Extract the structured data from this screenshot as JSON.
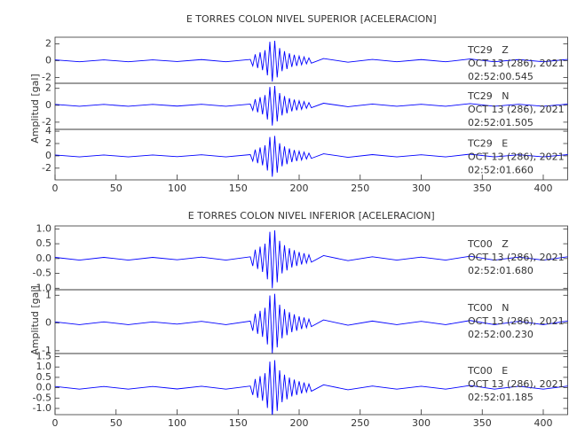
{
  "chart_data": [
    {
      "type": "line",
      "title": "E TORRES COLON NIVEL SUPERIOR [ACELERACION]",
      "ylabel": "Amplitud [gal]",
      "x": [
        0,
        20,
        40,
        60,
        80,
        100,
        120,
        140,
        160,
        162,
        164,
        166,
        168,
        170,
        172,
        174,
        176,
        178,
        180,
        182,
        184,
        186,
        188,
        190,
        192,
        194,
        196,
        198,
        200,
        202,
        204,
        206,
        208,
        210,
        220,
        240,
        260,
        280,
        300,
        320,
        340,
        360,
        380,
        400,
        420
      ],
      "xlim": [
        0,
        420
      ],
      "xticks": [
        0,
        50,
        100,
        150,
        200,
        250,
        300,
        350,
        400
      ],
      "panels": [
        {
          "station": "TC29   Z",
          "date": "OCT 13 (286), 2021",
          "time": "02:52:00.545",
          "ylim": [
            -2.7,
            2.8
          ],
          "yticks": [
            2,
            0,
            -2
          ],
          "series": [
            {
              "color": "#0000ff",
              "values": [
                0.1,
                -0.13,
                0.1,
                -0.13,
                0.1,
                -0.1,
                0.13,
                -0.13,
                0.15,
                -0.63,
                0.75,
                -0.88,
                1,
                -1.13,
                1.25,
                -1.75,
                2.25,
                -2.5,
                2.38,
                -2,
                1.5,
                -1.25,
                1.13,
                -1,
                0.88,
                -0.75,
                0.7,
                -0.63,
                0.55,
                -0.5,
                0.45,
                -0.38,
                0.33,
                -0.3,
                0.25,
                -0.18,
                0.15,
                -0.13,
                0.13,
                -0.13,
                0.2,
                -0.13,
                0.13,
                -0.13,
                0.15
              ]
            }
          ]
        },
        {
          "station": "TC29   N",
          "date": "OCT 13 (286), 2021",
          "time": "02:52:01.505",
          "ylim": [
            -2.85,
            2.6
          ],
          "yticks": [
            2,
            0,
            -2
          ],
          "series": [
            {
              "color": "#0000ff",
              "values": [
                0.1,
                -0.12,
                0.1,
                -0.12,
                0.1,
                -0.1,
                0.12,
                -0.12,
                0.14,
                -0.6,
                0.72,
                -0.84,
                0.96,
                -1.08,
                1.2,
                -1.68,
                2.16,
                -2.4,
                2.28,
                -1.92,
                1.44,
                -1.2,
                1.08,
                -0.96,
                0.84,
                -0.72,
                0.67,
                -0.6,
                0.53,
                -0.48,
                0.43,
                -0.36,
                0.31,
                -0.29,
                0.24,
                -0.17,
                0.14,
                -0.12,
                0.12,
                -0.12,
                0.19,
                -0.12,
                0.12,
                -0.12,
                0.14
              ]
            }
          ]
        },
        {
          "station": "TC29   E",
          "date": "OCT 13 (286), 2021",
          "time": "02:52:01.660",
          "ylim": [
            -3.9,
            4.3
          ],
          "yticks": [
            4,
            2,
            0,
            -2
          ],
          "series": [
            {
              "color": "#0000ff",
              "values": [
                0.14,
                -0.17,
                0.14,
                -0.17,
                0.14,
                -0.14,
                0.17,
                -0.17,
                0.2,
                -0.85,
                1.02,
                -1.19,
                1.36,
                -1.53,
                1.7,
                -2.38,
                3.06,
                -3.4,
                3.23,
                -2.72,
                2.04,
                -1.7,
                1.53,
                -1.36,
                1.19,
                -1.02,
                0.95,
                -0.85,
                0.75,
                -0.68,
                0.61,
                -0.51,
                0.44,
                -0.41,
                0.34,
                -0.24,
                0.2,
                -0.17,
                0.17,
                -0.17,
                0.27,
                -0.17,
                0.17,
                -0.17,
                0.2
              ]
            }
          ]
        }
      ]
    },
    {
      "type": "line",
      "title": "E TORRES COLON NIVEL INFERIOR [ACELERACION]",
      "ylabel": "Amplitud [gal]",
      "x": [
        0,
        20,
        40,
        60,
        80,
        100,
        120,
        140,
        160,
        162,
        164,
        166,
        168,
        170,
        172,
        174,
        176,
        178,
        180,
        182,
        184,
        186,
        188,
        190,
        192,
        194,
        196,
        198,
        200,
        202,
        204,
        206,
        208,
        210,
        220,
        240,
        260,
        280,
        300,
        320,
        340,
        360,
        380,
        400,
        420
      ],
      "xlim": [
        0,
        420
      ],
      "xticks": [
        0,
        50,
        100,
        150,
        200,
        250,
        300,
        350,
        400
      ],
      "panels": [
        {
          "station": "TC00   Z",
          "date": "OCT 13 (286), 2021",
          "time": "02:52:01.680",
          "ylim": [
            -1.05,
            1.1
          ],
          "yticks": [
            {
              "value": 1,
              "label": "1.0"
            },
            0.5,
            {
              "value": 0,
              "label": "0.0"
            },
            -0.5,
            {
              "value": -1,
              "label": "-1.0"
            }
          ],
          "series": [
            {
              "color": "#0000ff",
              "values": [
                0.04,
                -0.05,
                0.04,
                -0.05,
                0.04,
                -0.04,
                0.05,
                -0.05,
                0.06,
                -0.25,
                0.3,
                -0.35,
                0.4,
                -0.45,
                0.5,
                -0.7,
                0.9,
                -1,
                0.95,
                -0.8,
                0.6,
                -0.5,
                0.45,
                -0.4,
                0.35,
                -0.3,
                0.28,
                -0.25,
                0.22,
                -0.2,
                0.18,
                -0.15,
                0.13,
                -0.12,
                0.1,
                -0.07,
                0.06,
                -0.05,
                0.05,
                -0.05,
                0.08,
                -0.05,
                0.05,
                -0.05,
                0.06
              ]
            }
          ]
        },
        {
          "station": "TC00   N",
          "date": "OCT 13 (286), 2021",
          "time": "02:52:00.230",
          "ylim": [
            -1.1,
            1.2
          ],
          "yticks": [
            1,
            0,
            -1
          ],
          "series": [
            {
              "color": "#0000ff",
              "values": [
                0.04,
                -0.06,
                0.04,
                -0.06,
                0.04,
                -0.04,
                0.06,
                -0.06,
                0.07,
                -0.28,
                0.33,
                -0.39,
                0.44,
                -0.5,
                0.55,
                -0.77,
                0.99,
                -1.1,
                1.05,
                -0.88,
                0.66,
                -0.55,
                0.5,
                -0.44,
                0.39,
                -0.33,
                0.31,
                -0.28,
                0.24,
                -0.22,
                0.2,
                -0.17,
                0.14,
                -0.13,
                0.11,
                -0.08,
                0.07,
                -0.06,
                0.06,
                -0.06,
                0.09,
                -0.06,
                0.06,
                -0.06,
                0.07
              ]
            }
          ]
        },
        {
          "station": "TC00   E",
          "date": "OCT 13 (286), 2021",
          "time": "02:52:01.185",
          "ylim": [
            -1.3,
            1.65
          ],
          "yticks": [
            1.5,
            {
              "value": 1,
              "label": "1.0"
            },
            0.5,
            {
              "value": 0,
              "label": "0.0"
            },
            -0.5,
            {
              "value": -1,
              "label": "-1.0"
            }
          ],
          "series": [
            {
              "color": "#0000ff",
              "values": [
                0.06,
                -0.07,
                0.06,
                -0.07,
                0.06,
                -0.06,
                0.07,
                -0.07,
                0.08,
                -0.35,
                0.42,
                -0.49,
                0.56,
                -0.63,
                0.7,
                -0.98,
                1.26,
                -1.4,
                1.33,
                -1.12,
                0.84,
                -0.7,
                0.63,
                -0.56,
                0.49,
                -0.42,
                0.39,
                -0.35,
                0.31,
                -0.28,
                0.25,
                -0.21,
                0.18,
                -0.17,
                0.14,
                -0.1,
                0.08,
                -0.07,
                0.07,
                -0.07,
                0.11,
                -0.07,
                0.07,
                -0.07,
                0.08
              ]
            }
          ]
        }
      ]
    }
  ]
}
